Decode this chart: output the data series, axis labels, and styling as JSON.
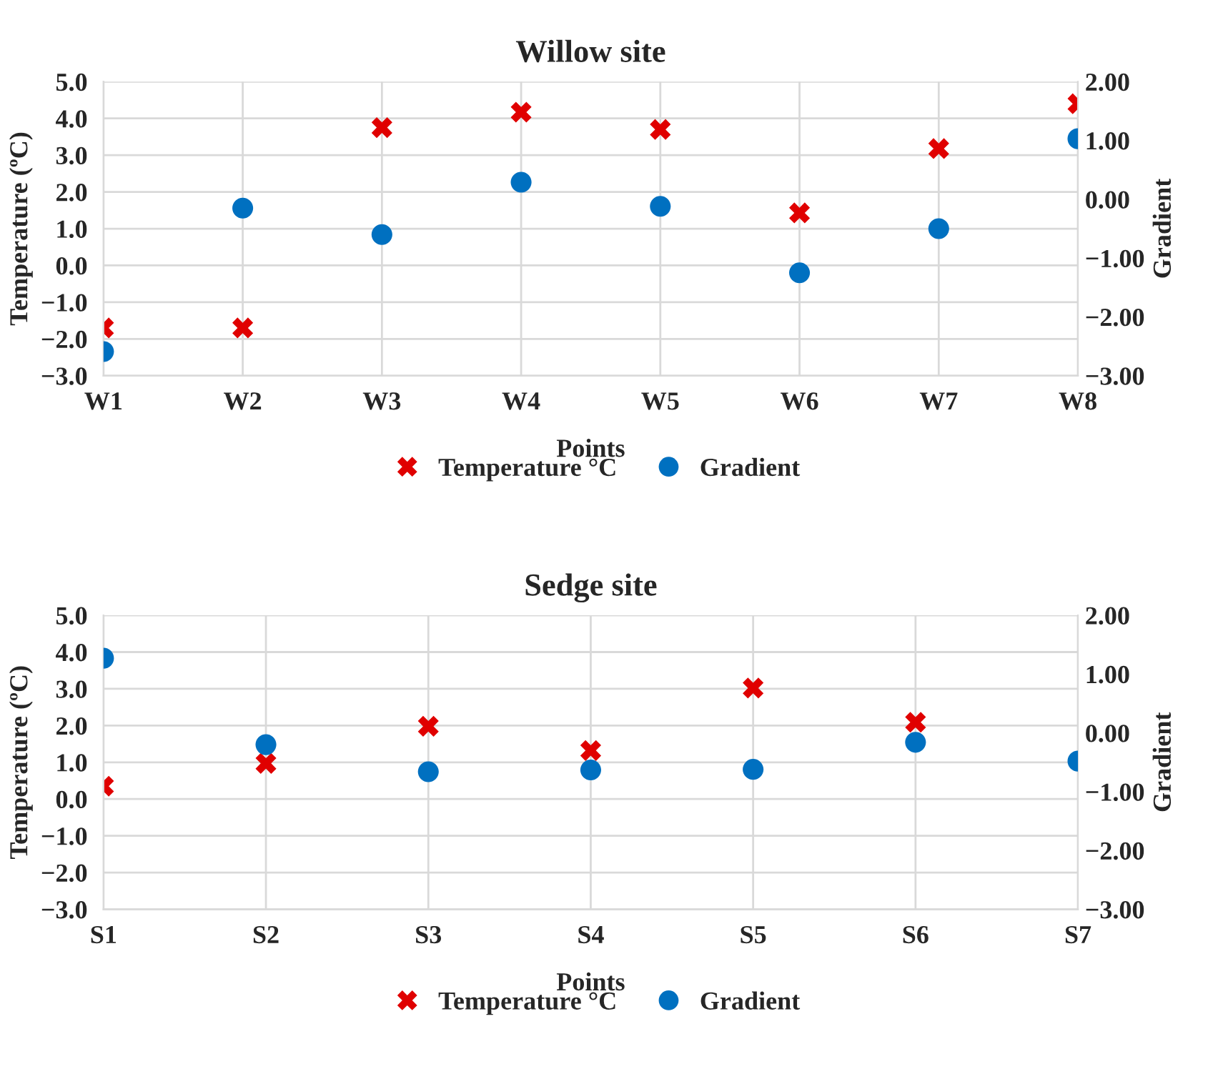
{
  "chart_data": [
    {
      "type": "scatter",
      "title": "Willow site",
      "xlabel": "Points",
      "ylabel": "Temperature (ºC)",
      "y2label": "Gradient",
      "categories": [
        "W1",
        "W2",
        "W3",
        "W4",
        "W5",
        "W6",
        "W7",
        "W8"
      ],
      "series": [
        {
          "name": "Temperature °C",
          "color": "#e00000",
          "marker": "cross",
          "values": [
            -1.7,
            -1.7,
            3.75,
            4.17,
            3.7,
            1.43,
            3.18,
            4.4
          ]
        },
        {
          "name": "Gradient",
          "color": "#0070c0",
          "marker": "circle",
          "axis": "y2",
          "values": [
            -2.59,
            -0.15,
            -0.6,
            0.29,
            -0.12,
            -1.25,
            -0.5,
            1.03
          ]
        }
      ],
      "ylim": [
        -3,
        5
      ],
      "yticks": [
        {
          "value": -3,
          "label": "−3.0"
        },
        {
          "value": -2,
          "label": "−2.0"
        },
        {
          "value": -1,
          "label": "−1.0"
        },
        {
          "value": 0,
          "label": "0.0"
        },
        {
          "value": 1,
          "label": "1.0"
        },
        {
          "value": 2,
          "label": "2.0"
        },
        {
          "value": 3,
          "label": "3.0"
        },
        {
          "value": 4,
          "label": "4.0"
        },
        {
          "value": 5,
          "label": "5.0"
        }
      ],
      "y2lim": [
        -3,
        2
      ],
      "y2ticks": [
        {
          "value": -3,
          "label": "−3.00"
        },
        {
          "value": -2,
          "label": "−2.00"
        },
        {
          "value": -1,
          "label": "−1.00"
        },
        {
          "value": 0,
          "label": "0.00"
        },
        {
          "value": 1,
          "label": "1.00"
        },
        {
          "value": 2,
          "label": "2.00"
        }
      ],
      "grid": true,
      "legend": "bottom"
    },
    {
      "type": "scatter",
      "title": "Sedge site",
      "xlabel": "Points",
      "ylabel": "Temperature (ºC)",
      "y2label": "Gradient",
      "categories": [
        "S1",
        "S2",
        "S3",
        "S4",
        "S5",
        "S6",
        "S7"
      ],
      "series": [
        {
          "name": "Temperature °C",
          "color": "#e00000",
          "marker": "cross",
          "values": [
            0.35,
            0.97,
            1.98,
            1.32,
            3.02,
            2.09,
            null
          ]
        },
        {
          "name": "Gradient",
          "color": "#0070c0",
          "marker": "circle",
          "axis": "y2",
          "values": [
            1.27,
            -0.2,
            -0.66,
            -0.63,
            -0.62,
            -0.16,
            -0.48
          ]
        }
      ],
      "ylim": [
        -3,
        5
      ],
      "yticks": [
        {
          "value": -3,
          "label": "−3.0"
        },
        {
          "value": -2,
          "label": "−2.0"
        },
        {
          "value": -1,
          "label": "−1.0"
        },
        {
          "value": 0,
          "label": "0.0"
        },
        {
          "value": 1,
          "label": "1.0"
        },
        {
          "value": 2,
          "label": "2.0"
        },
        {
          "value": 3,
          "label": "3.0"
        },
        {
          "value": 4,
          "label": "4.0"
        },
        {
          "value": 5,
          "label": "5.0"
        }
      ],
      "y2lim": [
        -3,
        2
      ],
      "y2ticks": [
        {
          "value": -3,
          "label": "−3.00"
        },
        {
          "value": -2,
          "label": "−2.00"
        },
        {
          "value": -1,
          "label": "−1.00"
        },
        {
          "value": 0,
          "label": "0.00"
        },
        {
          "value": 1,
          "label": "1.00"
        },
        {
          "value": 2,
          "label": "2.00"
        }
      ],
      "grid": true,
      "legend": "bottom"
    }
  ]
}
